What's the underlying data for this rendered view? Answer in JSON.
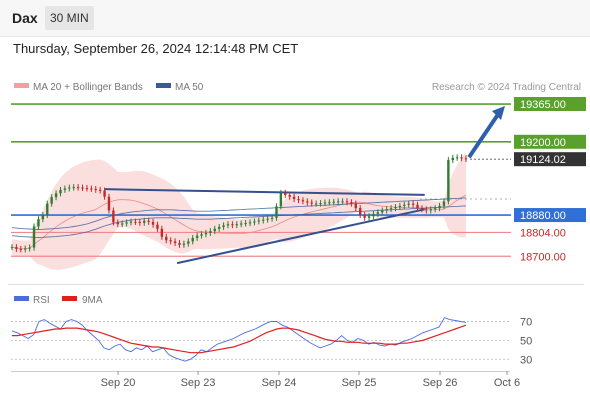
{
  "header": {
    "symbol": "Dax",
    "timeframe": "30 MIN"
  },
  "datetime": "Thursday, September 26, 2024 12:14:48 PM CET",
  "legend_main": {
    "bb": "MA 20 + Bollinger Bands",
    "ma50": "MA 50",
    "credit": "Research © 2024 Trading Central"
  },
  "legend_rsi": {
    "rsi": "RSI",
    "ma9": "9MA"
  },
  "colors": {
    "price_up": "#2e7d32",
    "price_down": "#c62828",
    "bollinger": "#f4a0a0",
    "ma50": "#3a5a9a",
    "resistance": "#5aa02c",
    "support": "#f08a8a",
    "pivot": "#2f6fd6",
    "trend": "#34508f",
    "rsi": "#4a6ee0",
    "ma9": "#e02020"
  },
  "chart_data": [
    {
      "type": "line",
      "title": "",
      "x_ticks": [
        "Sep 20",
        "Sep 23",
        "Sep 24",
        "Sep 25",
        "Sep 26",
        "Oct 6"
      ],
      "y_range": [
        18640,
        19400
      ],
      "levels": [
        {
          "label": "19365.00",
          "value": 19365,
          "kind": "resistance"
        },
        {
          "label": "19200.00",
          "value": 19200,
          "kind": "resistance"
        },
        {
          "label": "19124.02",
          "value": 19124.02,
          "kind": "last"
        },
        {
          "label": "18880.00",
          "value": 18880,
          "kind": "pivot"
        },
        {
          "label": "18804.00",
          "value": 18804,
          "kind": "support"
        },
        {
          "label": "18700.00",
          "value": 18700,
          "kind": "support"
        }
      ],
      "price": [
        18740,
        18732,
        18730,
        18734,
        18738,
        18830,
        18862,
        18880,
        18930,
        18958,
        18975,
        18990,
        18996,
        19000,
        19002,
        19000,
        18998,
        18996,
        18994,
        18990,
        18987,
        18960,
        18900,
        18848,
        18840,
        18843,
        18848,
        18851,
        18850,
        18846,
        18855,
        18850,
        18838,
        18820,
        18785,
        18770,
        18765,
        18758,
        18750,
        18755,
        18765,
        18780,
        18790,
        18796,
        18802,
        18810,
        18820,
        18828,
        18835,
        18840,
        18836,
        18840,
        18843,
        18845,
        18848,
        18852,
        18856,
        18860,
        18864,
        18868,
        18918,
        18977,
        18968,
        18960,
        18950,
        18945,
        18940,
        18935,
        18930,
        18930,
        18932,
        18935,
        18936,
        18938,
        18940,
        18940,
        18936,
        18930,
        18910,
        18880,
        18868,
        18875,
        18885,
        18892,
        18900,
        18906,
        18910,
        18915,
        18920,
        18925,
        18930,
        18925,
        18910,
        18905,
        18900,
        18905,
        18910,
        18920,
        18940,
        19120,
        19130,
        19132,
        19128,
        19124.02
      ],
      "ma50": [
        18790,
        18788,
        18786,
        18785,
        18784,
        18783,
        18782,
        18783,
        18784,
        18785,
        18786,
        18788,
        18790,
        18792,
        18795,
        18798,
        18802,
        18806,
        18812,
        18818,
        18825,
        18832,
        18838,
        18844,
        18848,
        18852,
        18855,
        18858,
        18860,
        18862,
        18864,
        18866,
        18867,
        18868,
        18868,
        18868,
        18868,
        18867,
        18866,
        18865,
        18864,
        18863,
        18862,
        18862,
        18862,
        18862,
        18863,
        18864,
        18865,
        18866,
        18867,
        18868,
        18869,
        18870,
        18871,
        18872,
        18873,
        18874,
        18875,
        18876,
        18877,
        18878,
        18879,
        18880,
        18881,
        18882,
        18883,
        18884,
        18885,
        18886,
        18887,
        18888,
        18889,
        18890,
        18891,
        18892,
        18893,
        18894,
        18895,
        18896,
        18897,
        18898,
        18899,
        18900,
        18901,
        18902,
        18903,
        18904,
        18905,
        18906,
        18907,
        18908,
        18909,
        18910,
        18911,
        18912,
        18913,
        18914,
        18915,
        18916,
        18917,
        18918,
        18919,
        18920
      ],
      "trendlines": [
        {
          "from": [
            18,
            18993
          ],
          "to": [
            80,
            18968
          ]
        },
        {
          "from": [
            32,
            18670
          ],
          "to": [
            80,
            18905
          ]
        }
      ],
      "arrow": {
        "from": [
          80,
          19124
        ],
        "to": [
          86,
          19365
        ]
      }
    },
    {
      "type": "line",
      "title": "",
      "y_ticks": [
        70,
        50,
        30
      ],
      "y_range": [
        25,
        80
      ],
      "rsi": [
        60,
        58,
        55,
        52,
        56,
        70,
        72,
        68,
        65,
        62,
        70,
        72,
        70,
        66,
        60,
        55,
        50,
        42,
        40,
        44,
        46,
        40,
        38,
        42,
        40,
        44,
        38,
        40,
        42,
        35,
        32,
        30,
        28,
        30,
        34,
        40,
        38,
        42,
        46,
        48,
        50,
        52,
        55,
        58,
        60,
        62,
        65,
        68,
        70,
        70,
        66,
        64,
        60,
        56,
        52,
        48,
        45,
        42,
        44,
        46,
        50,
        55,
        50,
        48,
        52,
        50,
        46,
        48,
        45,
        44,
        46,
        45,
        48,
        50,
        52,
        55,
        58,
        60,
        62,
        64,
        74,
        72,
        71,
        70,
        69
      ],
      "ma9": [
        55,
        55,
        56,
        57,
        58,
        59,
        60,
        61,
        62,
        62,
        63,
        63,
        63,
        62,
        61,
        60,
        59,
        57,
        55,
        53,
        51,
        49,
        47,
        46,
        45,
        44,
        43,
        43,
        42,
        41,
        40,
        39,
        38,
        37,
        37,
        37,
        38,
        39,
        40,
        41,
        42,
        43,
        45,
        47,
        49,
        52,
        55,
        58,
        60,
        62,
        63,
        63,
        62,
        61,
        59,
        57,
        55,
        53,
        51,
        50,
        49,
        49,
        48,
        48,
        48,
        47,
        47,
        47,
        47,
        46,
        46,
        46,
        47,
        47,
        48,
        49,
        50,
        52,
        54,
        56,
        58,
        60,
        62,
        64,
        66
      ]
    }
  ]
}
